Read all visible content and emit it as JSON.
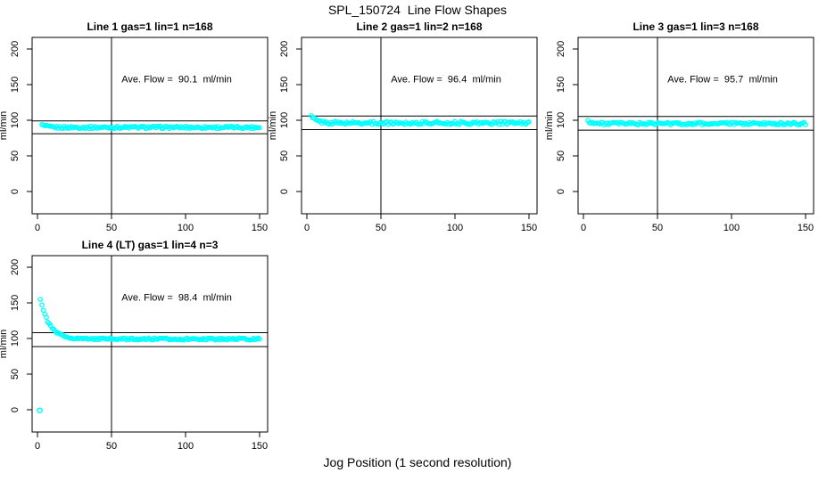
{
  "figure": {
    "title": "SPL_150724  Line Flow Shapes",
    "xlabel": "Jog Position (1 second resolution)",
    "point_color": "#00ffff",
    "axis_color": "#000000",
    "background": "#ffffff"
  },
  "chart_data": {
    "type": "scatter",
    "title": "SPL_150724  Line Flow Shapes",
    "xlabel": "Jog Position (1 second resolution)",
    "ylabel": "ml/min",
    "x_ticks": [
      0,
      50,
      100,
      150
    ],
    "y_ticks": [
      0,
      50,
      100,
      150,
      200
    ],
    "xlim": [
      -4,
      155
    ],
    "ylim": [
      -31,
      216
    ],
    "vline_x": 50,
    "ref_line_rule": "average flow plus/minus 10%",
    "marker": "open-circle",
    "panels": [
      {
        "title": "Line 1 gas=1 lin=1 n=168",
        "ave_flow": 90.1,
        "annotation": "Ave. Flow =  90.1  ml/min",
        "ref_lines": [
          99.1,
          81.1
        ],
        "series": {
          "x_start": 3,
          "x_end": 150,
          "x_step": 1,
          "start": 93.5,
          "flat": 90.0,
          "tau": 3.0,
          "noise": 1.7,
          "seed": 1
        },
        "outliers": []
      },
      {
        "title": "Line 2 gas=1 lin=2 n=168",
        "ave_flow": 96.4,
        "annotation": "Ave. Flow =  96.4  ml/min",
        "ref_lines": [
          106.0,
          86.8
        ],
        "series": {
          "x_start": 3,
          "x_end": 150,
          "x_step": 1,
          "start": 105.5,
          "flat": 96.2,
          "tau": 3.5,
          "noise": 2.1,
          "seed": 2
        },
        "outliers": []
      },
      {
        "title": "Line 3 gas=1 lin=3 n=168",
        "ave_flow": 95.7,
        "annotation": "Ave. Flow =  95.7  ml/min",
        "ref_lines": [
          105.3,
          86.1
        ],
        "series": {
          "x_start": 3,
          "x_end": 150,
          "x_step": 1,
          "start": 99.5,
          "flat": 95.3,
          "tau": 2.5,
          "noise": 1.9,
          "seed": 3
        },
        "outliers": []
      },
      {
        "title": "Line 4 (LT) gas=1 lin=4 n=3",
        "ave_flow": 98.4,
        "annotation": "Ave. Flow =  98.4  ml/min",
        "ref_lines": [
          108.2,
          88.6
        ],
        "series": {
          "x_start": 2,
          "x_end": 150,
          "x_step": 1,
          "start": 156.0,
          "flat": 99.3,
          "tau": 6.0,
          "noise": 1.4,
          "seed": 4
        },
        "outliers": [
          [
            1.5,
            -1.0
          ]
        ]
      }
    ]
  }
}
